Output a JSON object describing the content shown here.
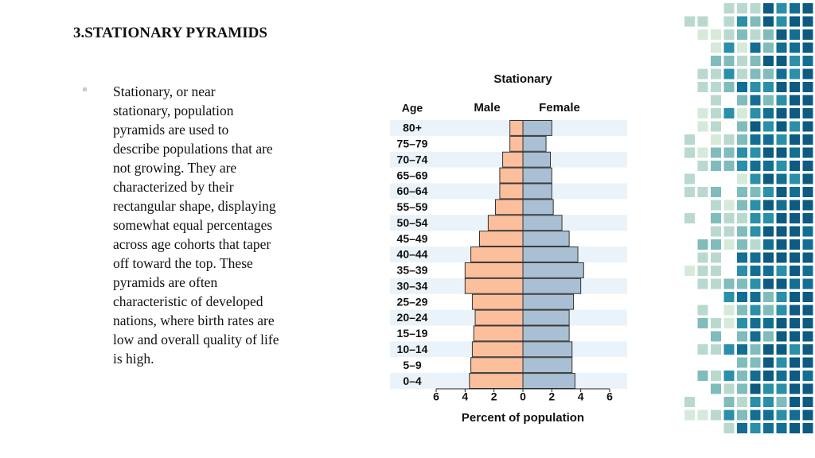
{
  "slide_title": "3.STATIONARY PYRAMIDS",
  "bullet_lines": [
    "Stationary, or near",
    "stationary, population",
    "pyramids are used to",
    "describe populations that are",
    "not growing. They are",
    "characterized by their",
    "rectangular shape, displaying",
    "somewhat equal percentages",
    "across age cohorts that taper",
    "off toward the top. These",
    "pyramids are often",
    "characteristic of developed",
    "nations, where birth rates are",
    "low and overall quality of life",
    "is high."
  ],
  "chart_data": {
    "type": "pyramid",
    "title": "Stationary",
    "y_label": "Age",
    "x_label": "Percent of population",
    "categories": [
      "80+",
      "75–79",
      "70–74",
      "65–69",
      "60–64",
      "55–59",
      "50–54",
      "45–49",
      "40–44",
      "35–39",
      "30–34",
      "25–29",
      "20–24",
      "15–19",
      "10–14",
      "5–9",
      "0–4"
    ],
    "series": [
      {
        "name": "Male",
        "color": "#fbbf9c",
        "values": [
          -0.9,
          -0.9,
          -1.4,
          -1.6,
          -1.6,
          -1.9,
          -2.4,
          -3.0,
          -3.6,
          -4.0,
          -4.0,
          -3.5,
          -3.3,
          -3.4,
          -3.5,
          -3.6,
          -3.7
        ]
      },
      {
        "name": "Female",
        "color": "#a9bfd3",
        "values": [
          2.0,
          1.6,
          1.9,
          2.0,
          2.0,
          2.1,
          2.7,
          3.2,
          3.8,
          4.2,
          4.0,
          3.5,
          3.2,
          3.2,
          3.4,
          3.4,
          3.6
        ]
      }
    ],
    "xlim": [
      -6,
      6
    ],
    "xticks": [
      {
        "value": -6,
        "label": "6"
      },
      {
        "value": -4,
        "label": "4"
      },
      {
        "value": -2,
        "label": "2"
      },
      0,
      2,
      4,
      6
    ]
  }
}
